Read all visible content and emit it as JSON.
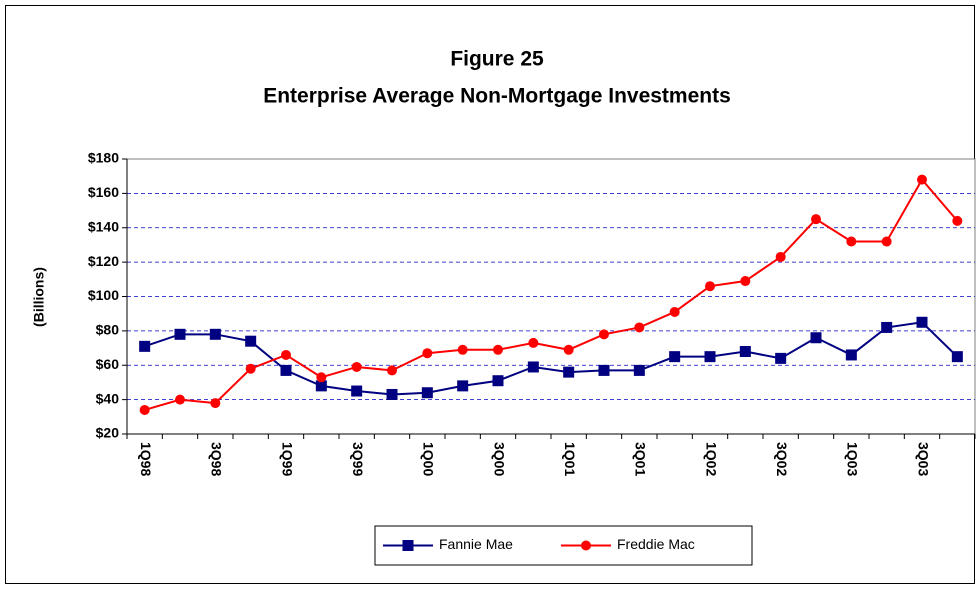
{
  "chart_data": {
    "type": "line",
    "title": "Figure 25",
    "subtitle": "Enterprise Average Non-Mortgage Investments",
    "y_label": "(Billions)",
    "categories": [
      "1Q98",
      null,
      "3Q98",
      null,
      "1Q99",
      null,
      "3Q99",
      null,
      "1Q00",
      null,
      "3Q00",
      null,
      "1Q01",
      null,
      "3Q01",
      null,
      "1Q02",
      null,
      "3Q02",
      null,
      "1Q03",
      null,
      "3Q03",
      null
    ],
    "series": [
      {
        "name": "Fannie Mae",
        "color": "#000080",
        "marker": "square",
        "values": [
          71,
          78,
          78,
          74,
          57,
          48,
          45,
          43,
          44,
          48,
          51,
          59,
          56,
          57,
          57,
          65,
          65,
          68,
          64,
          76,
          66,
          82,
          85,
          65
        ]
      },
      {
        "name": "Freddie Mac",
        "color": "#ff0000",
        "marker": "circle",
        "values": [
          34,
          40,
          38,
          58,
          66,
          53,
          59,
          57,
          67,
          69,
          69,
          73,
          69,
          78,
          82,
          91,
          106,
          109,
          123,
          145,
          132,
          132,
          168,
          144
        ]
      }
    ],
    "ylim": [
      20,
      180
    ],
    "yticks": [
      {
        "value": 20,
        "label": "$20"
      },
      {
        "value": 40,
        "label": "$40"
      },
      {
        "value": 60,
        "label": "$60"
      },
      {
        "value": 80,
        "label": "$80"
      },
      {
        "value": 100,
        "label": "$100"
      },
      {
        "value": 120,
        "label": "$120"
      },
      {
        "value": 140,
        "label": "$140"
      },
      {
        "value": 160,
        "label": "$160"
      },
      {
        "value": 180,
        "label": "$180"
      }
    ],
    "grid": true,
    "legend": "bottom"
  }
}
